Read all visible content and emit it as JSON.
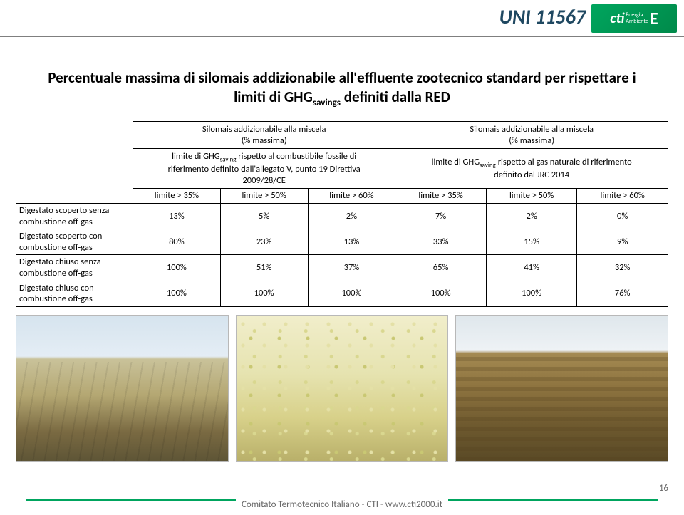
{
  "header": {
    "doc_code": "UNI 11567",
    "logo_cti": "cti",
    "logo_line1": "Energia",
    "logo_line2": "Ambiente",
    "logo_e": "E"
  },
  "title": {
    "line1": "Percentuale massima di silomais addizionabile all'effluente zootecnico standard per rispettare i",
    "line2_pre": "limiti di GHG",
    "line2_sub": "savings",
    "line2_post": " definiti dalla RED"
  },
  "table": {
    "group1_line1": "Silomais addizionabile alla miscela",
    "group1_line2": "(% massima)",
    "group2_line1": "Silomais addizionabile alla miscela",
    "group2_line2": "(% massima)",
    "sub1_l1": "limite di GHG",
    "sub1_sub": "saving",
    "sub1_l1b": " rispetto al combustibile fossile di",
    "sub1_l2": "riferimento definito dall'allegato V, punto 19 Direttiva",
    "sub1_l3": "2009/28/CE",
    "sub2_l1": "limite di GHG",
    "sub2_sub": "saving",
    "sub2_l1b": " rispetto al gas naturale di riferimento",
    "sub2_l2": "definito dal JRC 2014",
    "col1": "limite > 35%",
    "col2": "limite > 50%",
    "col3": "limite > 60%",
    "col4": "limite > 35%",
    "col5": "limite > 50%",
    "col6": "limite > 60%",
    "rows": [
      {
        "label_l1": "Digestato scoperto senza",
        "label_l2": "combustione off-gas",
        "c1": "13%",
        "c2": "5%",
        "c3": "2%",
        "c4": "7%",
        "c5": "2%",
        "c6": "0%"
      },
      {
        "label_l1": "Digestato scoperto con",
        "label_l2": "combustione off-gas",
        "c1": "80%",
        "c2": "23%",
        "c3": "13%",
        "c4": "33%",
        "c5": "15%",
        "c6": "9%"
      },
      {
        "label_l1": "Digestato chiuso senza",
        "label_l2": "combustione off-gas",
        "c1": "100%",
        "c2": "51%",
        "c3": "37%",
        "c4": "65%",
        "c5": "41%",
        "c6": "32%"
      },
      {
        "label_l1": "Digestato chiuso con",
        "label_l2": "combustione off-gas",
        "c1": "100%",
        "c2": "100%",
        "c3": "100%",
        "c4": "100%",
        "c5": "100%",
        "c6": "76%"
      }
    ]
  },
  "footer": {
    "text": "Comitato Termotecnico Italiano - CTI - www.cti2000.it",
    "page": "16"
  },
  "colors": {
    "header_rule": "#7f7f7f",
    "doc_code": "#1f4861",
    "logo_bg": "#00a55e",
    "footer_bar": "#00a55e",
    "footer_text": "#6a6a6a"
  }
}
